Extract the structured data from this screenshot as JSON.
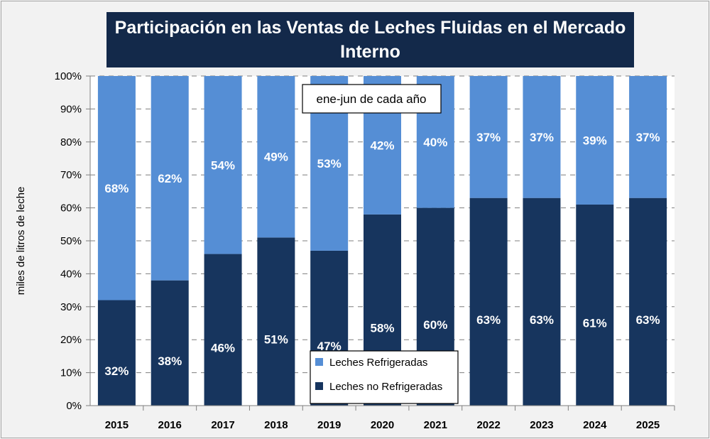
{
  "chart_data": {
    "type": "bar",
    "stacked": true,
    "title": "Participación  en las Ventas de Leches Fluidas en el Mercado Interno",
    "annotation": "ene-jun de cada año",
    "ylabel": "miles de litros de leche",
    "xlabel": "",
    "ylim": [
      0,
      100
    ],
    "yticks": [
      "0%",
      "10%",
      "20%",
      "30%",
      "40%",
      "50%",
      "60%",
      "70%",
      "80%",
      "90%",
      "100%"
    ],
    "grid": true,
    "legend_placement": "bottom-center",
    "categories": [
      "2015",
      "2016",
      "2017",
      "2018",
      "2019",
      "2020",
      "2021",
      "2022",
      "2023",
      "2024",
      "2025"
    ],
    "series": [
      {
        "name": "Leches no Refrigeradas",
        "color": "#17355e",
        "values": [
          32,
          38,
          46,
          51,
          47,
          58,
          60,
          63,
          63,
          61,
          63
        ],
        "labels": [
          "32%",
          "38%",
          "46%",
          "51%",
          "47%",
          "58%",
          "60%",
          "63%",
          "63%",
          "61%",
          "63%"
        ]
      },
      {
        "name": "Leches Refrigeradas",
        "color": "#558ed5",
        "values": [
          68,
          62,
          54,
          49,
          53,
          42,
          40,
          37,
          37,
          39,
          37
        ],
        "labels": [
          "68%",
          "62%",
          "54%",
          "49%",
          "53%",
          "42%",
          "40%",
          "37%",
          "37%",
          "39%",
          "37%"
        ]
      }
    ]
  }
}
